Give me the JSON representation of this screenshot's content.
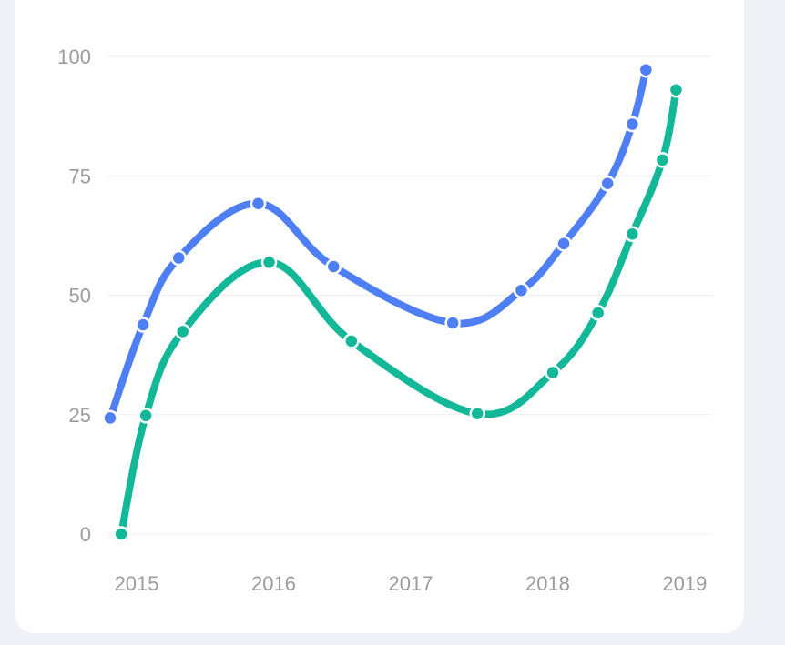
{
  "chart_data": {
    "type": "line",
    "title": "",
    "xlabel": "",
    "ylabel": "",
    "x_ticks": [
      "2015",
      "2016",
      "2017",
      "2018",
      "2019"
    ],
    "x_tick_values": [
      2015,
      2016,
      2017,
      2018,
      2019
    ],
    "y_ticks": [
      "0",
      "25",
      "50",
      "75",
      "100"
    ],
    "y_tick_values": [
      0,
      25,
      50,
      75,
      100
    ],
    "xlim": [
      2014.9,
      2019.2
    ],
    "ylim": [
      0,
      100
    ],
    "grid": true,
    "legend": "none",
    "series": [
      {
        "color": "#4f7ff4",
        "points": [
          [
            2014.92,
            24.3
          ],
          [
            2015.16,
            43.8
          ],
          [
            2015.42,
            57.8
          ],
          [
            2016.0,
            69.2
          ],
          [
            2016.55,
            56.0
          ],
          [
            2017.42,
            44.2
          ],
          [
            2017.92,
            51.0
          ],
          [
            2018.23,
            60.8
          ],
          [
            2018.55,
            73.4
          ],
          [
            2018.73,
            85.8
          ],
          [
            2018.83,
            97.2
          ]
        ]
      },
      {
        "color": "#13b899",
        "points": [
          [
            2015.0,
            0.0
          ],
          [
            2015.18,
            24.8
          ],
          [
            2015.45,
            42.4
          ],
          [
            2016.08,
            56.9
          ],
          [
            2016.68,
            40.4
          ],
          [
            2017.6,
            25.2
          ],
          [
            2018.15,
            33.8
          ],
          [
            2018.48,
            46.3
          ],
          [
            2018.73,
            62.8
          ],
          [
            2018.95,
            78.3
          ],
          [
            2019.05,
            93.0
          ]
        ]
      }
    ]
  }
}
